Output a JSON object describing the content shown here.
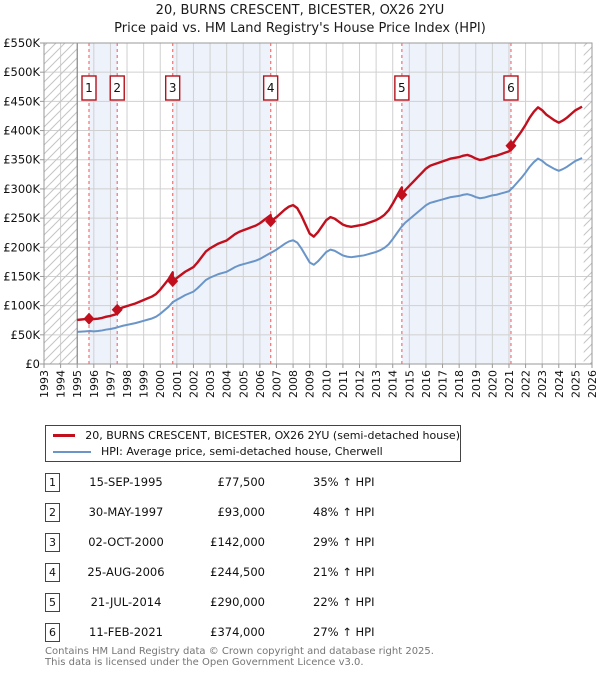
{
  "title": {
    "line1": "20, BURNS CRESCENT, BICESTER, OX26 2YU",
    "line2": "Price paid vs. HM Land Registry's House Price Index (HPI)"
  },
  "legend": {
    "entries": [
      {
        "label": "20, BURNS CRESCENT, BICESTER, OX26 2YU (semi-detached house)",
        "color": "#c10f1e",
        "thickness": 3
      },
      {
        "label": "HPI: Average price, semi-detached house, Cherwell",
        "color": "#6a95c8",
        "thickness": 2
      }
    ]
  },
  "footer": {
    "line1": "Contains HM Land Registry data © Crown copyright and database right 2025.",
    "line2": "This data is licensed under the Open Government Licence v3.0."
  },
  "chart_data": {
    "type": "line",
    "title": "20, BURNS CRESCENT, BICESTER, OX26 2YU — Price paid vs. HM Land Registry's House Price Index (HPI)",
    "x_axis": {
      "start": 1993,
      "end": 2026,
      "years": [
        1993,
        1994,
        1995,
        1996,
        1997,
        1998,
        1999,
        2000,
        2001,
        2002,
        2003,
        2004,
        2005,
        2006,
        2007,
        2008,
        2009,
        2010,
        2011,
        2012,
        2013,
        2014,
        2015,
        2016,
        2017,
        2018,
        2019,
        2020,
        2021,
        2022,
        2023,
        2024,
        2025,
        2026
      ]
    },
    "y_axis": {
      "min": 0,
      "max": 550000,
      "tick_step": 50000,
      "tick_labels": [
        "£0",
        "£50K",
        "£100K",
        "£150K",
        "£200K",
        "£250K",
        "£300K",
        "£350K",
        "£400K",
        "£450K",
        "£500K",
        "£550K"
      ]
    },
    "grid": true,
    "legend_position": "bottom",
    "data_start_year": 1995.0,
    "data_end_year": 2025.4,
    "transactions": [
      {
        "num": "1",
        "date": "15-SEP-1995",
        "year": 1995.71,
        "price": 77500,
        "price_display": "£77,500",
        "pct_display": "35% ↑ HPI"
      },
      {
        "num": "2",
        "date": "30-MAY-1997",
        "year": 1997.41,
        "price": 93000,
        "price_display": "£93,000",
        "pct_display": "48% ↑ HPI"
      },
      {
        "num": "3",
        "date": "02-OCT-2000",
        "year": 2000.75,
        "price": 142000,
        "price_display": "£142,000",
        "pct_display": "29% ↑ HPI"
      },
      {
        "num": "4",
        "date": "25-AUG-2006",
        "year": 2006.65,
        "price": 244500,
        "price_display": "£244,500",
        "pct_display": "21% ↑ HPI"
      },
      {
        "num": "5",
        "date": "21-JUL-2014",
        "year": 2014.55,
        "price": 290000,
        "price_display": "£290,000",
        "pct_display": "22% ↑ HPI"
      },
      {
        "num": "6",
        "date": "11-FEB-2021",
        "year": 2021.12,
        "price": 374000,
        "price_display": "£374,000",
        "pct_display": "27% ↑ HPI"
      }
    ],
    "shaded_ownership_bands": [
      [
        1995.71,
        1997.41
      ],
      [
        2000.75,
        2006.65
      ],
      [
        2014.55,
        2021.12
      ]
    ],
    "series": [
      {
        "name": "20, BURNS CRESCENT, BICESTER, OX26 2YU (semi-detached house)",
        "color": "#c10f1e",
        "derivation": "HPI series rescaled to pass through each price-paid point; vertical step at each sale"
      },
      {
        "name": "HPI: Average price, semi-detached house, Cherwell",
        "color": "#6a95c8",
        "points_year_gbpK": [
          [
            1995.0,
            55
          ],
          [
            1995.25,
            55.5
          ],
          [
            1995.5,
            56
          ],
          [
            1995.75,
            56.5
          ],
          [
            1996.0,
            56
          ],
          [
            1996.25,
            56.5
          ],
          [
            1996.5,
            57.5
          ],
          [
            1996.75,
            59
          ],
          [
            1997.0,
            60
          ],
          [
            1997.25,
            61.5
          ],
          [
            1997.5,
            63.5
          ],
          [
            1997.75,
            65.5
          ],
          [
            1998.0,
            67
          ],
          [
            1998.25,
            68.5
          ],
          [
            1998.5,
            70
          ],
          [
            1998.75,
            72
          ],
          [
            1999.0,
            74
          ],
          [
            1999.25,
            76
          ],
          [
            1999.5,
            78
          ],
          [
            1999.75,
            81
          ],
          [
            2000.0,
            86
          ],
          [
            2000.25,
            92
          ],
          [
            2000.5,
            98
          ],
          [
            2000.75,
            106
          ],
          [
            2001.0,
            110
          ],
          [
            2001.25,
            114
          ],
          [
            2001.5,
            118
          ],
          [
            2001.75,
            121
          ],
          [
            2002.0,
            124
          ],
          [
            2002.25,
            130
          ],
          [
            2002.5,
            137
          ],
          [
            2002.75,
            144
          ],
          [
            2003.0,
            148
          ],
          [
            2003.25,
            151
          ],
          [
            2003.5,
            154
          ],
          [
            2003.75,
            156
          ],
          [
            2004.0,
            158
          ],
          [
            2004.25,
            162
          ],
          [
            2004.5,
            166
          ],
          [
            2004.75,
            169
          ],
          [
            2005.0,
            171
          ],
          [
            2005.25,
            173
          ],
          [
            2005.5,
            175
          ],
          [
            2005.75,
            177
          ],
          [
            2006.0,
            180
          ],
          [
            2006.25,
            184
          ],
          [
            2006.5,
            188
          ],
          [
            2006.75,
            192
          ],
          [
            2007.0,
            196
          ],
          [
            2007.25,
            201
          ],
          [
            2007.5,
            206
          ],
          [
            2007.75,
            210
          ],
          [
            2008.0,
            212
          ],
          [
            2008.25,
            208
          ],
          [
            2008.5,
            198
          ],
          [
            2008.75,
            186
          ],
          [
            2009.0,
            174
          ],
          [
            2009.25,
            170
          ],
          [
            2009.5,
            176
          ],
          [
            2009.75,
            184
          ],
          [
            2010.0,
            192
          ],
          [
            2010.25,
            196
          ],
          [
            2010.5,
            194
          ],
          [
            2010.75,
            190
          ],
          [
            2011.0,
            186
          ],
          [
            2011.25,
            184
          ],
          [
            2011.5,
            183
          ],
          [
            2011.75,
            184
          ],
          [
            2012.0,
            185
          ],
          [
            2012.25,
            186
          ],
          [
            2012.5,
            188
          ],
          [
            2012.75,
            190
          ],
          [
            2013.0,
            192
          ],
          [
            2013.25,
            195
          ],
          [
            2013.5,
            199
          ],
          [
            2013.75,
            205
          ],
          [
            2014.0,
            214
          ],
          [
            2014.25,
            224
          ],
          [
            2014.5,
            234
          ],
          [
            2014.75,
            242
          ],
          [
            2015.0,
            248
          ],
          [
            2015.25,
            254
          ],
          [
            2015.5,
            260
          ],
          [
            2015.75,
            266
          ],
          [
            2016.0,
            272
          ],
          [
            2016.25,
            276
          ],
          [
            2016.5,
            278
          ],
          [
            2016.75,
            280
          ],
          [
            2017.0,
            282
          ],
          [
            2017.25,
            284
          ],
          [
            2017.5,
            286
          ],
          [
            2017.75,
            287
          ],
          [
            2018.0,
            288
          ],
          [
            2018.25,
            290
          ],
          [
            2018.5,
            291
          ],
          [
            2018.75,
            289
          ],
          [
            2019.0,
            286
          ],
          [
            2019.25,
            284
          ],
          [
            2019.5,
            285
          ],
          [
            2019.75,
            287
          ],
          [
            2020.0,
            289
          ],
          [
            2020.25,
            290
          ],
          [
            2020.5,
            292
          ],
          [
            2020.75,
            294
          ],
          [
            2021.0,
            296
          ],
          [
            2021.25,
            303
          ],
          [
            2021.5,
            311
          ],
          [
            2021.75,
            319
          ],
          [
            2022.0,
            328
          ],
          [
            2022.25,
            338
          ],
          [
            2022.5,
            346
          ],
          [
            2022.75,
            352
          ],
          [
            2023.0,
            348
          ],
          [
            2023.25,
            342
          ],
          [
            2023.5,
            338
          ],
          [
            2023.75,
            334
          ],
          [
            2024.0,
            331
          ],
          [
            2024.25,
            334
          ],
          [
            2024.5,
            338
          ],
          [
            2024.75,
            343
          ],
          [
            2025.0,
            348
          ],
          [
            2025.25,
            351
          ],
          [
            2025.4,
            353
          ]
        ]
      }
    ],
    "colors": {
      "price_line": "#c10f1e",
      "hpi_line": "#6a95c8",
      "sale_dashed_line": "#f37c7c",
      "ownership_band": "#eef2fb",
      "grid": "#d0d0d0",
      "plot_border": "#999999",
      "hatch": "#c4c4c4",
      "marker_box_border": "#b5121b"
    }
  }
}
